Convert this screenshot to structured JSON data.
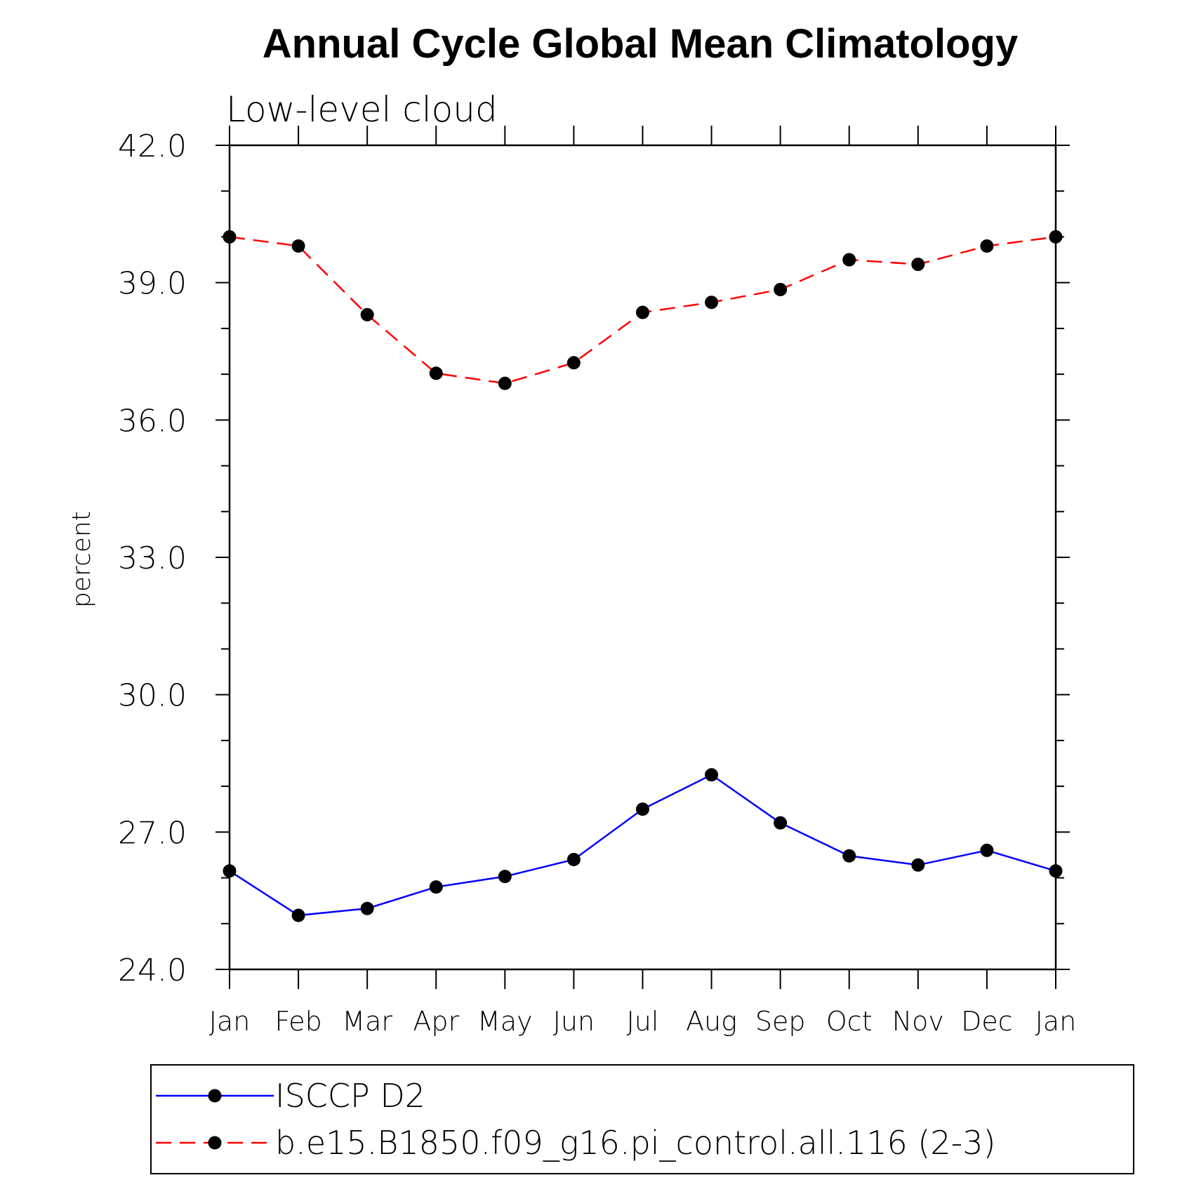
{
  "chart_data": {
    "type": "line",
    "title": "Annual Cycle Global Mean Climatology",
    "subtitle": "Low-level cloud",
    "xlabel": "",
    "ylabel": "percent",
    "ylim": [
      24.0,
      42.0
    ],
    "yticks": [
      "24.0",
      "27.0",
      "30.0",
      "33.0",
      "36.0",
      "39.0",
      "42.0"
    ],
    "categories": [
      "Jan",
      "Feb",
      "Mar",
      "Apr",
      "May",
      "Jun",
      "Jul",
      "Aug",
      "Sep",
      "Oct",
      "Nov",
      "Dec",
      "Jan"
    ],
    "grid": false,
    "legend_position": "bottom",
    "series": [
      {
        "name": "ISCCP D2",
        "color": "#0000ff",
        "dash": "solid",
        "marker": "filled-circle",
        "values": [
          26.15,
          25.18,
          25.33,
          25.8,
          26.03,
          26.4,
          27.5,
          28.25,
          27.2,
          26.48,
          26.28,
          26.6,
          26.15
        ]
      },
      {
        "name": "b.e15.B1850.f09_g16.pi_control.all.116 (2-3)",
        "color": "#ff0000",
        "dash": "dashed",
        "marker": "filled-circle",
        "values": [
          40.0,
          39.8,
          38.3,
          37.02,
          36.8,
          37.25,
          38.35,
          38.57,
          38.85,
          39.5,
          39.4,
          39.8,
          40.0
        ]
      }
    ]
  }
}
